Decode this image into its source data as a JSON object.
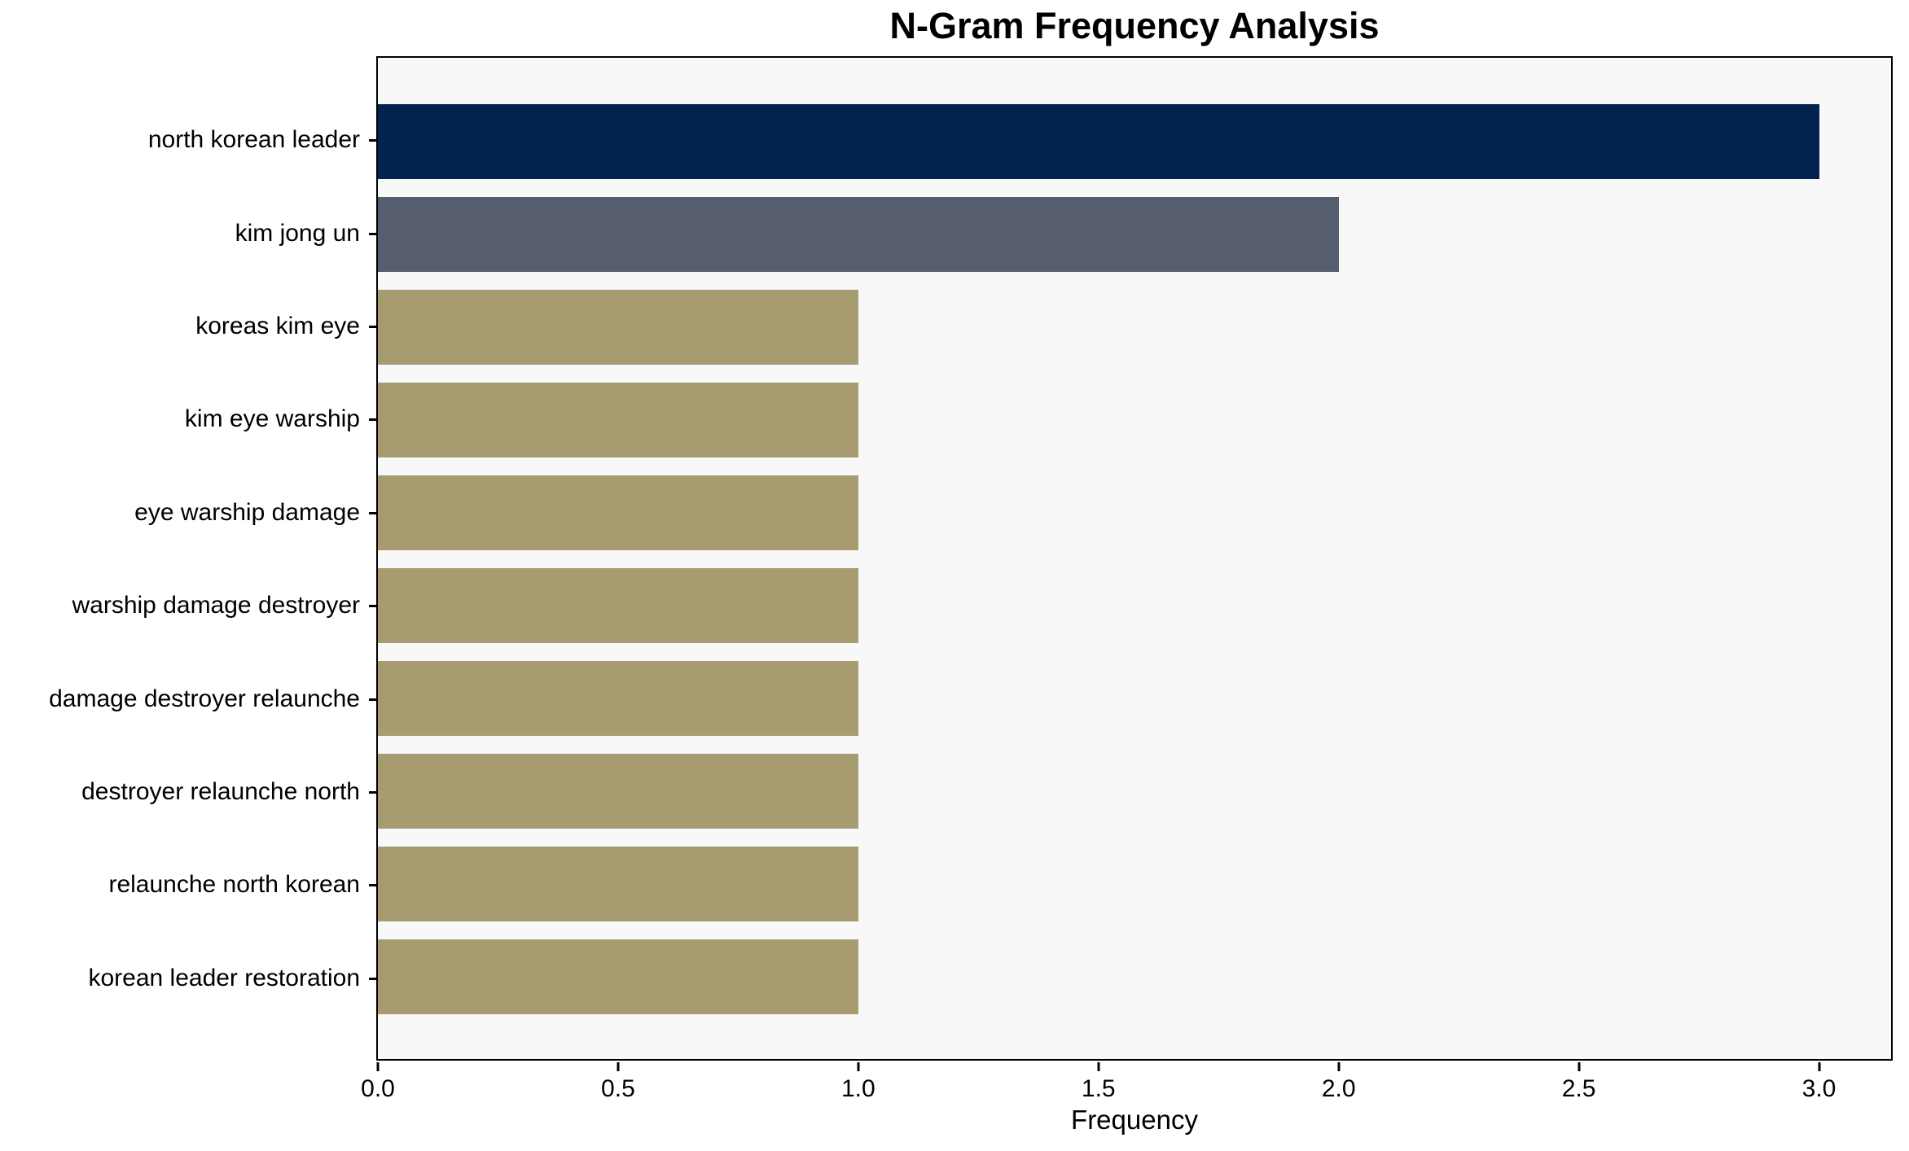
{
  "title": "N-Gram Frequency Analysis",
  "xlabel": "Frequency",
  "chart_data": {
    "type": "bar",
    "orientation": "horizontal",
    "title": "N-Gram Frequency Analysis",
    "xlabel": "Frequency",
    "ylabel": "",
    "categories": [
      "north korean leader",
      "kim jong un",
      "koreas kim eye",
      "kim eye warship",
      "eye warship damage",
      "warship damage destroyer",
      "damage destroyer relaunche",
      "destroyer relaunche north",
      "relaunche north korean",
      "korean leader restoration"
    ],
    "values": [
      3,
      2,
      1,
      1,
      1,
      1,
      1,
      1,
      1,
      1
    ],
    "bar_colors": [
      "#02234e",
      "#565d6e",
      "#a69c6f",
      "#a69c6f",
      "#a69c6f",
      "#a69c6f",
      "#a69c6f",
      "#a69c6f",
      "#a69c6f",
      "#a69c6f"
    ],
    "xlim": [
      0,
      3.15
    ],
    "xticks": [
      0,
      0.5,
      1,
      1.5,
      2,
      2.5,
      3
    ],
    "xtick_labels": [
      "0.0",
      "0.5",
      "1.0",
      "1.5",
      "2.0",
      "2.5",
      "3.0"
    ],
    "grid": false,
    "legend_position": "none",
    "bar_height_fraction": 0.8,
    "plot_background": "#f8f8f8",
    "figure_background": "#ffffff",
    "spine_color": "#000000"
  }
}
